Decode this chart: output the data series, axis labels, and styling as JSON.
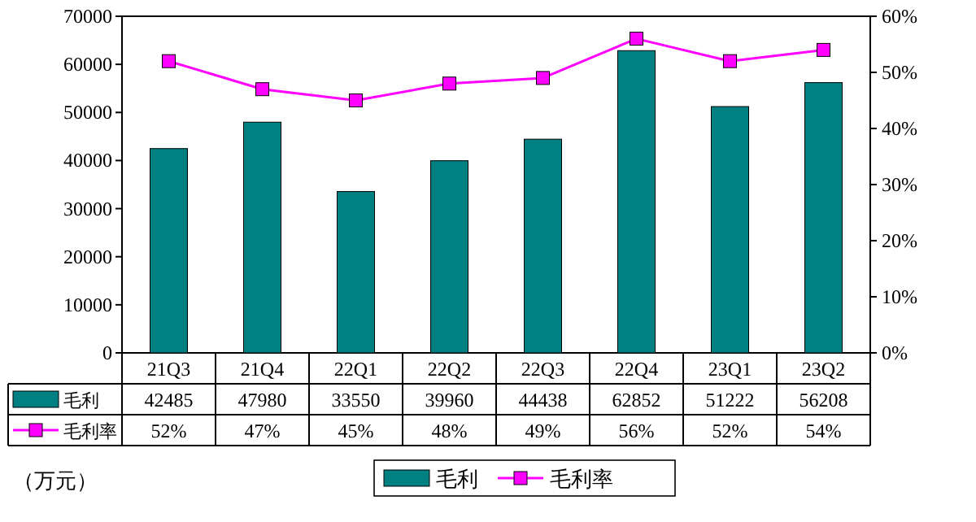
{
  "chart_data": {
    "type": "bar",
    "categories": [
      "21Q3",
      "21Q4",
      "22Q1",
      "22Q2",
      "22Q3",
      "22Q4",
      "23Q1",
      "23Q2"
    ],
    "series": [
      {
        "name": "毛利",
        "color": "#008080",
        "values": [
          42485,
          47980,
          33550,
          39960,
          44438,
          62852,
          51222,
          56208
        ],
        "value_labels": [
          "42485",
          "47980",
          "33550",
          "39960",
          "44438",
          "62852",
          "51222",
          "56208"
        ]
      },
      {
        "name": "毛利率",
        "type": "line",
        "axis": "y2",
        "color": "#ff00ff",
        "marker": "square",
        "values": [
          52,
          47,
          45,
          48,
          49,
          56,
          52,
          54
        ],
        "value_labels": [
          "52%",
          "47%",
          "45%",
          "48%",
          "49%",
          "56%",
          "52%",
          "54%"
        ]
      }
    ],
    "ylim": [
      0,
      70000
    ],
    "yticks": [
      0,
      10000,
      20000,
      30000,
      40000,
      50000,
      60000,
      70000
    ],
    "y2lim": [
      0,
      60
    ],
    "y2ticks": [
      {
        "value": 0,
        "label": "0%"
      },
      {
        "value": 10,
        "label": "10%"
      },
      {
        "value": 20,
        "label": "20%"
      },
      {
        "value": 30,
        "label": "30%"
      },
      {
        "value": 40,
        "label": "40%"
      },
      {
        "value": 50,
        "label": "50%"
      },
      {
        "value": 60,
        "label": "60%"
      }
    ],
    "legend": "bottom",
    "grid": false,
    "annotations": [
      "（万元）"
    ]
  }
}
